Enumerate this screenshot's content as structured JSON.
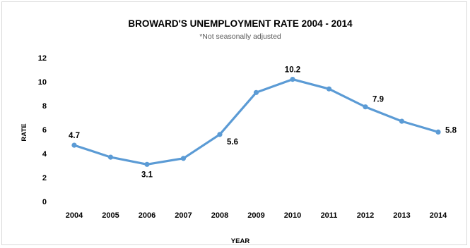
{
  "chart_data": {
    "type": "line",
    "title": "BROWARD'S UNEMPLOYMENT RATE 2004 - 2014",
    "subtitle": "*Not seasonally adjusted",
    "xlabel": "YEAR",
    "ylabel": "RATE",
    "categories": [
      "2004",
      "2005",
      "2006",
      "2007",
      "2008",
      "2009",
      "2010",
      "2011",
      "2012",
      "2013",
      "2014"
    ],
    "series": [
      {
        "values": [
          4.7,
          3.7,
          3.1,
          3.6,
          5.6,
          9.1,
          10.2,
          9.4,
          7.9,
          6.7,
          5.8
        ]
      }
    ],
    "data_labels": [
      {
        "category": "2004",
        "text": "4.7"
      },
      {
        "category": "2006",
        "text": "3.1"
      },
      {
        "category": "2008",
        "text": "5.6"
      },
      {
        "category": "2010",
        "text": "10.2"
      },
      {
        "category": "2012",
        "text": "7.9"
      },
      {
        "category": "2014",
        "text": "5.8"
      }
    ],
    "ylim": [
      0,
      12
    ],
    "yticks": [
      0,
      2,
      4,
      6,
      8,
      10,
      12
    ],
    "grid": false,
    "legend": "none",
    "line_color": "#5b9bd5"
  }
}
